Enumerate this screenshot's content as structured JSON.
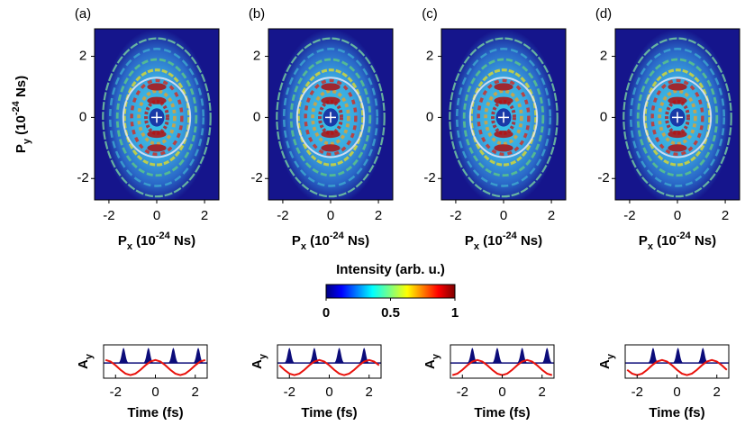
{
  "chart_data": [
    {
      "type": "heatmap",
      "panel_label": "(a)",
      "xlabel": {
        "symbol": "P",
        "sub": "x",
        "open": " (10",
        "sup": "-24",
        "close": " Ns)"
      },
      "ylabel": {
        "symbol": "P",
        "sub": "y",
        "open": " (10",
        "sup": "-24",
        "close": " Ns)"
      },
      "xlim": [
        -2.6,
        2.6
      ],
      "ylim": [
        -2.7,
        2.9
      ],
      "xticks": [
        -2,
        0,
        2
      ],
      "yticks": [
        -2,
        0,
        2
      ]
    },
    {
      "type": "heatmap",
      "panel_label": "(b)",
      "xlabel": {
        "symbol": "P",
        "sub": "x",
        "open": " (10",
        "sup": "-24",
        "close": " Ns)"
      },
      "xlim": [
        -2.6,
        2.6
      ],
      "ylim": [
        -2.7,
        2.9
      ],
      "xticks": [
        -2,
        0,
        2
      ],
      "yticks": [
        -2,
        0,
        2
      ]
    },
    {
      "type": "heatmap",
      "panel_label": "(c)",
      "xlabel": {
        "symbol": "P",
        "sub": "x",
        "open": " (10",
        "sup": "-24",
        "close": " Ns)"
      },
      "xlim": [
        -2.6,
        2.6
      ],
      "ylim": [
        -2.7,
        2.9
      ],
      "xticks": [
        -2,
        0,
        2
      ],
      "yticks": [
        -2,
        0,
        2
      ]
    },
    {
      "type": "heatmap",
      "panel_label": "(d)",
      "xlabel": {
        "symbol": "P",
        "sub": "x",
        "open": " (10",
        "sup": "-24",
        "close": " Ns)"
      },
      "xlim": [
        -2.6,
        2.6
      ],
      "ylim": [
        -2.7,
        2.9
      ],
      "xticks": [
        -2,
        0,
        2
      ],
      "yticks": [
        -2,
        0,
        2
      ]
    },
    {
      "type": "line",
      "ylabel": {
        "symbol": "A",
        "sub": "y"
      },
      "xlabel": "Time (fs)",
      "x": [
        -2.5,
        -2.25,
        -2,
        -1.75,
        -1.5,
        -1.25,
        -1,
        -0.75,
        -0.5,
        -0.25,
        0,
        0.25,
        0.5,
        0.75,
        1,
        1.25,
        1.5,
        1.75,
        2,
        2.25,
        2.5
      ],
      "xlim": [
        -2.6,
        2.6
      ],
      "ylim": [
        -1,
        1.2
      ],
      "xticks": [
        -2,
        0,
        2
      ],
      "series": [
        {
          "color": "#e8120c",
          "values": [
            0.2,
            0.1,
            -0.15,
            -0.45,
            -0.7,
            -0.8,
            -0.7,
            -0.45,
            -0.15,
            0.1,
            0.2,
            0.1,
            -0.15,
            -0.45,
            -0.7,
            -0.8,
            -0.7,
            -0.45,
            -0.15,
            0.1,
            0.2
          ]
        }
      ],
      "pulses": {
        "color": "#0c0c7a",
        "centers": [
          -1.6,
          -0.35,
          0.9,
          2.15
        ],
        "height": 1
      }
    },
    {
      "type": "line",
      "ylabel": {
        "symbol": "A",
        "sub": "y"
      },
      "xlabel": "Time (fs)",
      "x": [
        -2.5,
        -2.25,
        -2,
        -1.75,
        -1.5,
        -1.25,
        -1,
        -0.75,
        -0.5,
        -0.25,
        0,
        0.25,
        0.5,
        0.75,
        1,
        1.25,
        1.5,
        1.75,
        2,
        2.25,
        2.5
      ],
      "xlim": [
        -2.6,
        2.6
      ],
      "ylim": [
        -1,
        1.2
      ],
      "xticks": [
        -2,
        0,
        2
      ],
      "series": [
        {
          "color": "#e8120c",
          "values": [
            -0.15,
            -0.45,
            -0.7,
            -0.8,
            -0.7,
            -0.45,
            -0.15,
            0.1,
            0.2,
            0.1,
            -0.15,
            -0.45,
            -0.7,
            -0.8,
            -0.7,
            -0.45,
            -0.15,
            0.1,
            0.2,
            0.1,
            -0.15
          ]
        }
      ],
      "pulses": {
        "color": "#0c0c7a",
        "centers": [
          -2.0,
          -0.75,
          0.5,
          1.75
        ],
        "height": 1
      }
    },
    {
      "type": "line",
      "ylabel": {
        "symbol": "A",
        "sub": "y"
      },
      "xlabel": "Time (fs)",
      "x": [
        -2.5,
        -2.25,
        -2,
        -1.75,
        -1.5,
        -1.25,
        -1,
        -0.75,
        -0.5,
        -0.25,
        0,
        0.25,
        0.5,
        0.75,
        1,
        1.25,
        1.5,
        1.75,
        2,
        2.25,
        2.5
      ],
      "xlim": [
        -2.6,
        2.6
      ],
      "ylim": [
        -1,
        1.2
      ],
      "xticks": [
        -2,
        0,
        2
      ],
      "series": [
        {
          "color": "#e8120c",
          "values": [
            -0.8,
            -0.7,
            -0.45,
            -0.15,
            0.1,
            0.2,
            0.1,
            -0.15,
            -0.45,
            -0.7,
            -0.8,
            -0.7,
            -0.45,
            -0.15,
            0.1,
            0.2,
            0.1,
            -0.15,
            -0.45,
            -0.7,
            -0.8
          ]
        }
      ],
      "pulses": {
        "color": "#0c0c7a",
        "centers": [
          -1.5,
          -0.25,
          1.0,
          2.25
        ],
        "height": 1
      }
    },
    {
      "type": "line",
      "ylabel": {
        "symbol": "A",
        "sub": "y"
      },
      "xlabel": "Time (fs)",
      "x": [
        -2.5,
        -2.25,
        -2,
        -1.75,
        -1.5,
        -1.25,
        -1,
        -0.75,
        -0.5,
        -0.25,
        0,
        0.25,
        0.5,
        0.75,
        1,
        1.25,
        1.5,
        1.75,
        2,
        2.25,
        2.5
      ],
      "xlim": [
        -2.6,
        2.6
      ],
      "ylim": [
        -1,
        1.2
      ],
      "xticks": [
        -2,
        0,
        2
      ],
      "series": [
        {
          "color": "#e8120c",
          "values": [
            -0.45,
            -0.7,
            -0.8,
            -0.7,
            -0.45,
            -0.15,
            0.1,
            0.2,
            0.1,
            -0.15,
            -0.45,
            -0.7,
            -0.8,
            -0.7,
            -0.45,
            -0.15,
            0.1,
            0.2,
            0.1,
            -0.15,
            -0.45
          ]
        }
      ],
      "pulses": {
        "color": "#0c0c7a",
        "centers": [
          -1.2,
          0.05,
          1.3
        ],
        "height": 1
      }
    }
  ],
  "colorbar": {
    "label": "Intensity (arb. u.)",
    "lim": [
      0,
      1
    ],
    "ticks": [
      0,
      0.5,
      1
    ]
  }
}
